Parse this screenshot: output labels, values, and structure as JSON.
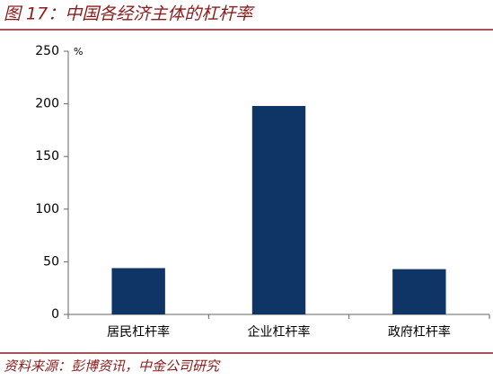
{
  "chart_data": {
    "type": "bar",
    "title": "图 17：中国各经济主体的杠杆率",
    "source": "资料来源：彭博资讯，中金公司研究",
    "y_unit": "%",
    "categories": [
      "居民杠杆率",
      "企业杠杆率",
      "政府杠杆率"
    ],
    "values": [
      44,
      198,
      43
    ],
    "color": "#0f3466",
    "ylim": [
      0,
      250
    ],
    "yticks": [
      0,
      50,
      100,
      150,
      200,
      250
    ],
    "grid": false
  }
}
